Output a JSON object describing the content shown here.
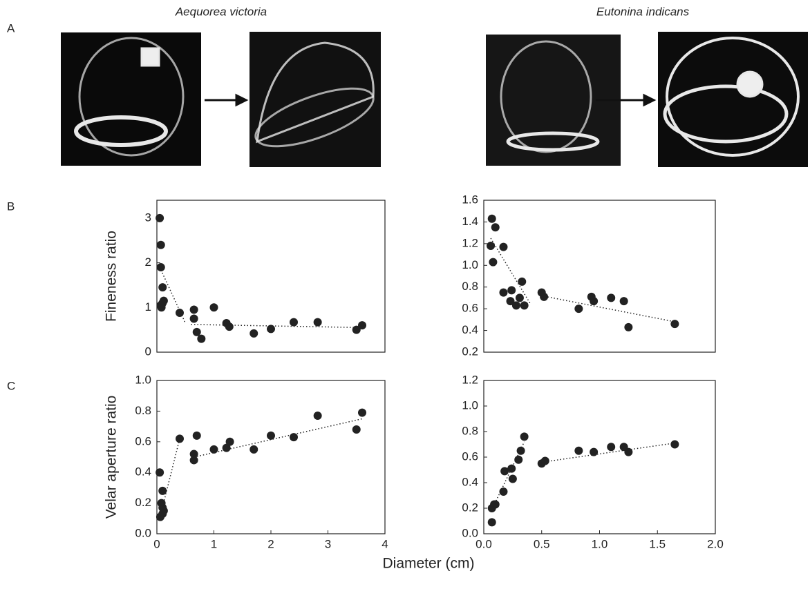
{
  "panel_labels": [
    "A",
    "B",
    "C"
  ],
  "species": [
    "Aequorea victoria",
    "Eutonina indicans"
  ],
  "shared_xlabel": "Diameter (cm)",
  "chart_data": [
    {
      "type": "scatter",
      "ylabel": "Fineness ratio",
      "xlim": [
        0,
        4
      ],
      "ylim": [
        0,
        3.4
      ],
      "yticks": [
        0,
        1,
        2,
        3
      ],
      "series": [
        {
          "color": "#222222",
          "x": [
            0.05,
            0.07,
            0.07,
            0.1,
            0.1,
            0.07,
            0.08,
            0.12,
            0.4,
            0.65,
            0.65,
            0.7,
            0.78,
            1.0,
            1.22,
            1.27,
            1.7,
            2.0,
            2.4,
            2.82,
            3.5,
            3.6
          ],
          "values": [
            3.0,
            2.4,
            1.9,
            1.45,
            1.1,
            1.05,
            1.0,
            1.15,
            0.88,
            0.95,
            0.75,
            0.45,
            0.3,
            1.0,
            0.65,
            0.57,
            0.42,
            0.52,
            0.67,
            0.67,
            0.5,
            0.6
          ]
        },
        {
          "color": "#222222",
          "style": "dotted",
          "x": [
            0.05,
            0.5
          ],
          "values": [
            1.9,
            0.65
          ]
        },
        {
          "color": "#222222",
          "style": "dotted",
          "x": [
            0.6,
            3.6
          ],
          "values": [
            0.62,
            0.55
          ]
        }
      ]
    },
    {
      "type": "scatter",
      "xlim": [
        0,
        2
      ],
      "ylim": [
        0.2,
        1.6
      ],
      "yticks": [
        0.2,
        0.4,
        0.6,
        0.8,
        {
          "value": 1,
          "label": "1.0"
        },
        1.2,
        1.4,
        1.6
      ],
      "series": [
        {
          "color": "#222222",
          "x": [
            0.07,
            0.1,
            0.06,
            0.08,
            0.17,
            0.17,
            0.23,
            0.24,
            0.28,
            0.31,
            0.33,
            0.35,
            0.5,
            0.52,
            0.82,
            0.93,
            0.95,
            1.1,
            1.21,
            1.25,
            1.65
          ],
          "values": [
            1.43,
            1.35,
            1.18,
            1.03,
            1.17,
            0.75,
            0.67,
            0.77,
            0.63,
            0.7,
            0.85,
            0.63,
            0.75,
            0.71,
            0.6,
            0.71,
            0.67,
            0.7,
            0.67,
            0.43,
            0.46
          ]
        },
        {
          "color": "#222222",
          "style": "dotted",
          "x": [
            0.06,
            0.4
          ],
          "values": [
            1.25,
            0.65
          ]
        },
        {
          "color": "#222222",
          "style": "dotted",
          "x": [
            0.5,
            1.65
          ],
          "values": [
            0.72,
            0.48
          ]
        }
      ]
    },
    {
      "type": "scatter",
      "ylabel": "Velar aperture ratio",
      "xlim": [
        0,
        4
      ],
      "ylim": [
        0,
        1
      ],
      "xticks": [
        0,
        1,
        2,
        3,
        4
      ],
      "yticks": [
        {
          "value": 0,
          "label": "0.0"
        },
        0.2,
        0.4,
        0.6,
        0.8,
        {
          "value": 1,
          "label": "1.0"
        }
      ],
      "series": [
        {
          "color": "#222222",
          "x": [
            0.05,
            0.1,
            0.08,
            0.1,
            0.12,
            0.1,
            0.06,
            0.4,
            0.65,
            0.65,
            0.7,
            1.0,
            1.22,
            1.28,
            1.7,
            2.0,
            2.4,
            2.82,
            3.5,
            3.6
          ],
          "values": [
            0.4,
            0.28,
            0.2,
            0.17,
            0.15,
            0.13,
            0.11,
            0.62,
            0.48,
            0.52,
            0.64,
            0.55,
            0.56,
            0.6,
            0.55,
            0.64,
            0.63,
            0.77,
            0.68,
            0.79
          ]
        },
        {
          "color": "#222222",
          "style": "dotted",
          "x": [
            0.05,
            0.4
          ],
          "values": [
            0.1,
            0.62
          ]
        },
        {
          "color": "#222222",
          "style": "dotted",
          "x": [
            0.65,
            3.6
          ],
          "values": [
            0.5,
            0.75
          ]
        }
      ]
    },
    {
      "type": "scatter",
      "xlim": [
        0,
        2
      ],
      "ylim": [
        0,
        1.2
      ],
      "xticks": [
        {
          "value": 0,
          "label": "0.0"
        },
        0.5,
        {
          "value": 1,
          "label": "1.0"
        },
        1.5,
        {
          "value": 2,
          "label": "2.0"
        }
      ],
      "yticks": [
        {
          "value": 0,
          "label": "0.0"
        },
        0.2,
        0.4,
        0.6,
        0.8,
        {
          "value": 1,
          "label": "1.0"
        },
        1.2
      ],
      "series": [
        {
          "color": "#222222",
          "x": [
            0.07,
            0.07,
            0.09,
            0.1,
            0.17,
            0.18,
            0.24,
            0.25,
            0.3,
            0.32,
            0.35,
            0.5,
            0.53,
            0.82,
            0.95,
            1.1,
            1.21,
            1.25,
            1.65
          ],
          "values": [
            0.09,
            0.2,
            0.23,
            0.23,
            0.33,
            0.49,
            0.51,
            0.43,
            0.58,
            0.65,
            0.76,
            0.55,
            0.57,
            0.65,
            0.64,
            0.68,
            0.68,
            0.64,
            0.7
          ]
        },
        {
          "color": "#222222",
          "style": "dotted",
          "x": [
            0.06,
            0.35
          ],
          "values": [
            0.17,
            0.72
          ]
        },
        {
          "color": "#222222",
          "style": "dotted",
          "x": [
            0.5,
            1.65
          ],
          "values": [
            0.56,
            0.71
          ]
        }
      ]
    }
  ]
}
